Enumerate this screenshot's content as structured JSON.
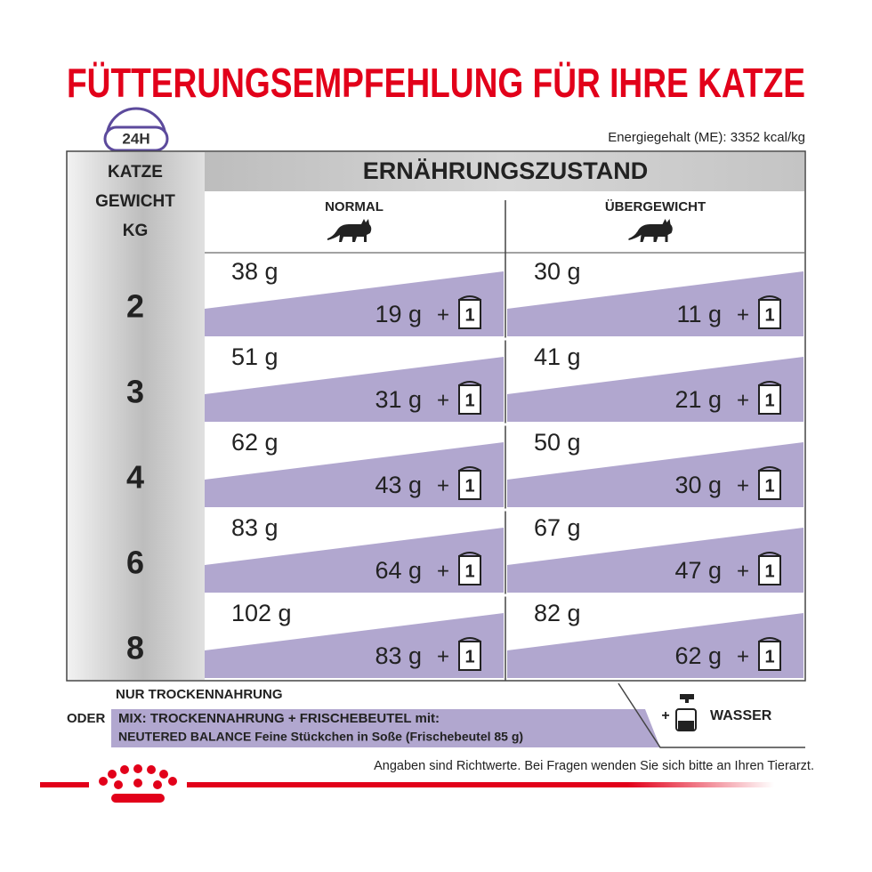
{
  "title": "FÜTTERUNGSEMPFEHLUNG FÜR IHRE KATZE",
  "badge": "24H",
  "energy": "Energiegehalt (ME): 3352 kcal/kg",
  "table": {
    "weight_header": [
      "KATZE",
      "GEWICHT",
      "KG"
    ],
    "group_header": "ERNÄHRUNGSZUSTAND",
    "columns": [
      "NORMAL",
      "ÜBERGEWICHT"
    ],
    "plus": "+",
    "pouch": "1",
    "rows": [
      {
        "weight": "2",
        "cells": [
          {
            "dry": "38 g",
            "mix": "19 g"
          },
          {
            "dry": "30 g",
            "mix": "11 g"
          }
        ]
      },
      {
        "weight": "3",
        "cells": [
          {
            "dry": "51 g",
            "mix": "31 g"
          },
          {
            "dry": "41 g",
            "mix": "21 g"
          }
        ]
      },
      {
        "weight": "4",
        "cells": [
          {
            "dry": "62 g",
            "mix": "43 g"
          },
          {
            "dry": "50 g",
            "mix": "30 g"
          }
        ]
      },
      {
        "weight": "6",
        "cells": [
          {
            "dry": "83 g",
            "mix": "64 g"
          },
          {
            "dry": "67 g",
            "mix": "47 g"
          }
        ]
      },
      {
        "weight": "8",
        "cells": [
          {
            "dry": "102 g",
            "mix": "83 g"
          },
          {
            "dry": "82 g",
            "mix": "62 g"
          }
        ]
      }
    ]
  },
  "legend": {
    "dry_only": "NUR TROCKENNAHRUNG",
    "or": "ODER",
    "mix_line1": "MIX: TROCKENNAHRUNG + FRISCHEBEUTEL mit:",
    "mix_line2": "NEUTERED BALANCE Feine Stückchen in Soße (Frischebeutel 85 g)",
    "water_plus": "+",
    "water": "WASSER"
  },
  "footnote": "Angaben sind Richtwerte. Bei Fragen wenden Sie sich bitte an Ihren Tierarzt."
}
